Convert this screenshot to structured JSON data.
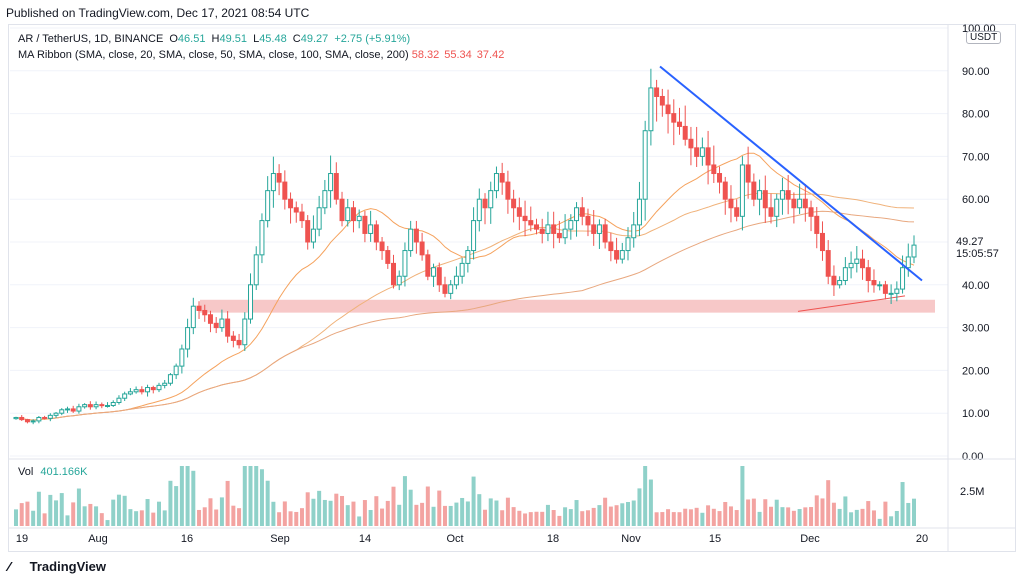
{
  "header": {
    "published": "Published on TradingView.com, Dec 17, 2021 08:54 UTC"
  },
  "legend": {
    "symbol": "AR / TetherUS, 1D, BINANCE",
    "o_label": "O",
    "o": "46.51",
    "h_label": "H",
    "h": "49.51",
    "l_label": "L",
    "l": "45.48",
    "c_label": "C",
    "c": "49.27",
    "change": "+2.75 (+5.91%)",
    "ma_label": "MA Ribbon (SMA, close, 20, SMA, close, 50, SMA, close, 100, SMA, close, 200)",
    "ma_values": [
      "58.32",
      "55.34",
      "37.42"
    ]
  },
  "price_tag": {
    "price": "49.27",
    "countdown": "15:05:57"
  },
  "currency": "USDT",
  "volume": {
    "label": "Vol",
    "value": "401.166K",
    "axis_label": "2.5M"
  },
  "footer": {
    "brand": "TradingView"
  },
  "colors": {
    "up": "#26a69a",
    "down": "#ef5350",
    "trendline": "#2962ff",
    "zone": "#f4b6b6",
    "ma20": "#f5a25d",
    "ma50": "#f0b27a",
    "ma100": "#e8a77e",
    "ma200": "#ef5350"
  },
  "chart_data": {
    "type": "candlestick",
    "y_ticks": [
      "100.00",
      "90.00",
      "80.00",
      "70.00",
      "60.00",
      "50.00",
      "40.00",
      "30.00",
      "20.00",
      "10.00",
      "0.00"
    ],
    "ylim": [
      0,
      100
    ],
    "x_ticks": [
      "19",
      "Aug",
      "16",
      "Sep",
      "14",
      "Oct",
      "18",
      "Nov",
      "15",
      "Dec",
      "20"
    ],
    "closes": [
      9,
      8.5,
      8,
      8.2,
      9,
      8.8,
      9.5,
      10,
      10.8,
      11,
      10.5,
      11.5,
      12,
      11.5,
      12,
      11.8,
      11.8,
      12.5,
      13.5,
      14.5,
      15,
      15.5,
      15,
      16,
      15.5,
      16.5,
      17,
      19,
      21,
      25,
      30,
      35,
      34,
      33,
      31,
      30,
      32,
      28,
      27,
      26,
      32,
      40,
      47,
      55,
      62,
      66,
      64,
      60,
      58,
      57,
      55,
      50,
      53,
      58,
      62,
      66,
      60,
      55,
      58,
      55,
      56,
      52,
      54,
      50,
      48,
      45,
      40,
      42,
      48,
      53,
      50,
      47,
      42,
      44,
      40,
      38,
      40,
      42,
      45,
      48,
      55,
      60,
      58,
      62,
      66,
      64,
      60,
      58,
      56,
      55,
      54,
      53,
      52,
      54,
      52,
      51,
      53,
      55,
      58,
      56,
      54,
      52,
      54,
      50,
      48,
      46,
      48,
      51,
      54,
      60,
      76,
      86,
      84,
      82,
      80,
      78,
      77,
      74,
      72,
      70,
      72,
      68,
      66,
      64,
      60,
      58,
      56,
      68,
      64,
      60,
      62,
      58,
      56,
      60,
      62,
      60,
      58,
      60,
      58,
      56,
      52,
      48,
      42,
      40,
      41,
      44,
      45,
      46,
      44,
      41,
      40,
      40,
      38,
      38,
      39,
      44,
      46.5,
      49.27
    ],
    "ma_ribbon": {
      "ma20_end": 58.32,
      "ma50_end": 55.34,
      "ma200_end": 37.42
    },
    "trendline": {
      "from": [
        "Nov 4",
        91
      ],
      "to": [
        "Dec 20",
        41
      ]
    },
    "support_zone": [
      33.5,
      36.5
    ]
  }
}
